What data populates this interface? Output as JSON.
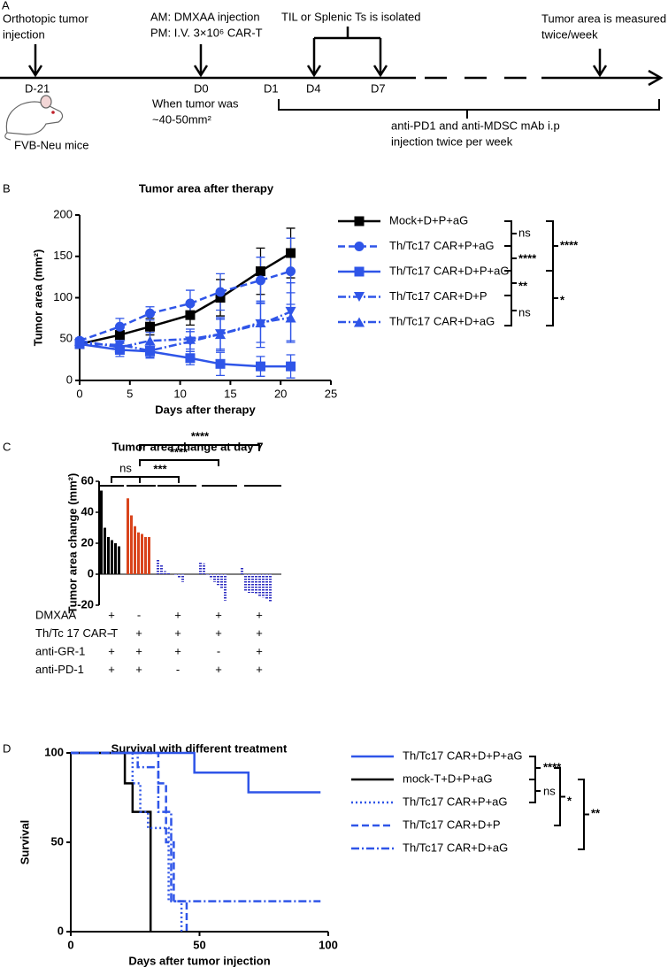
{
  "panel_a": {
    "label": "A",
    "texts": [
      "Orthotopic tumor",
      "injection",
      "AM: DMXAA injection",
      "PM: I.V. 3×10⁶ CAR-T",
      "TIL or Splenic Ts is isolated",
      "Tumor area is measured",
      "twice/week",
      "D-21",
      "D0",
      "D1",
      "D4",
      "D7",
      "When tumor was",
      "~40-50mm²",
      "FVB-Neu mice",
      "anti-PD1 and anti-MDSC mAb i.p",
      "injection twice per week"
    ]
  },
  "chart_data": [
    {
      "panel": "B",
      "type": "line",
      "title": "Tumor area after therapy",
      "x_label": "Days after therapy",
      "y_label": "Tumor area (mm²)",
      "x": [
        0,
        4,
        7,
        11,
        14,
        18,
        21
      ],
      "series": [
        {
          "name": "Mock+D+P+aG",
          "color": "#000000",
          "marker": "square",
          "line": "solid",
          "values": [
            44,
            55,
            65,
            79,
            100,
            132,
            154
          ],
          "errors": [
            3,
            10,
            10,
            12,
            22,
            28,
            30
          ]
        },
        {
          "name": "Th/Tc17 CAR+P+aG",
          "color": "#2f55e8",
          "marker": "circle",
          "line": "dashed",
          "values": [
            48,
            65,
            81,
            93,
            107,
            121,
            132
          ],
          "errors": [
            3,
            10,
            8,
            16,
            22,
            28,
            40
          ]
        },
        {
          "name": "Th/Tc17 CAR+D+P+aG",
          "color": "#2f55e8",
          "marker": "square",
          "line": "solid",
          "values": [
            44,
            37,
            35,
            27,
            20,
            17,
            17
          ],
          "errors": [
            3,
            8,
            8,
            8,
            14,
            12,
            14
          ]
        },
        {
          "name": "Th/Tc17 CAR+D+P",
          "color": "#2f55e8",
          "marker": "triangle-down",
          "line": "dashdot",
          "values": [
            44,
            43,
            36,
            47,
            56,
            68,
            83
          ],
          "errors": [
            3,
            10,
            8,
            12,
            20,
            28,
            35
          ]
        },
        {
          "name": "Th/Tc17 CAR+D+aG",
          "color": "#2f55e8",
          "marker": "triangle-up",
          "line": "dashdot",
          "values": [
            48,
            40,
            48,
            50,
            56,
            70,
            76
          ],
          "errors": [
            3,
            8,
            10,
            12,
            18,
            24,
            30
          ]
        }
      ],
      "xlim": [
        0,
        25
      ],
      "xticks": [
        0,
        5,
        10,
        15,
        20,
        25
      ],
      "ylim": [
        0,
        200
      ],
      "yticks": [
        0,
        50,
        100,
        150,
        200
      ],
      "annotations": [
        "ns",
        "****",
        "****",
        "**",
        "ns",
        "*"
      ]
    },
    {
      "panel": "C",
      "type": "bar",
      "title": "Tumor area change at day 7",
      "y_label": "Tumor area change (mm²)",
      "groups": [
        {
          "color": "#000000",
          "pattern": "solid",
          "values": [
            54,
            30,
            24,
            22,
            20,
            18
          ]
        },
        {
          "color": "#d9441c",
          "pattern": "solid",
          "values": [
            49,
            38,
            31,
            27,
            26,
            24,
            24
          ]
        },
        {
          "color": "#2b2bc0",
          "pattern": "hatch",
          "values": [
            10,
            6,
            2,
            1,
            0,
            -1,
            -2,
            -5
          ]
        },
        {
          "color": "#2b2bc0",
          "pattern": "hatch",
          "values": [
            8,
            7,
            -1,
            -3,
            -5,
            -7,
            -9,
            -17
          ]
        },
        {
          "color": "#2b2bc0",
          "pattern": "hatch",
          "values": [
            4,
            -11,
            -12,
            -12,
            -13,
            -14,
            -15,
            -16,
            -18
          ]
        }
      ],
      "ylim": [
        -20,
        60
      ],
      "yticks": [
        -20,
        0,
        20,
        40,
        60
      ],
      "treatments": [
        {
          "label": "DMXAA",
          "marks": [
            "+",
            "-",
            "+",
            "+",
            "+"
          ]
        },
        {
          "label": "Th/Tc 17 CAR-T",
          "marks": [
            "-",
            "+",
            "+",
            "+",
            "+"
          ]
        },
        {
          "label": "anti-GR-1",
          "marks": [
            "+",
            "+",
            "+",
            "-",
            "+"
          ]
        },
        {
          "label": "anti-PD-1",
          "marks": [
            "+",
            "+",
            "-",
            "+",
            "+"
          ]
        }
      ],
      "annotations": [
        "ns",
        "***",
        "****",
        "****"
      ]
    },
    {
      "panel": "D",
      "type": "step",
      "title": "Survival with different treatment",
      "x_label": "Days after tumor injection",
      "y_label": "Survival",
      "series": [
        {
          "name": "Th/Tc17 CAR+D+P+aG",
          "color": "#2f55e8",
          "line": "solid",
          "x": [
            0,
            48,
            69,
            97
          ],
          "values": [
            100,
            89,
            78,
            78
          ]
        },
        {
          "name": "mock-T+D+P+aG",
          "color": "#000000",
          "line": "solid",
          "x": [
            0,
            21,
            24,
            31
          ],
          "values": [
            100,
            83,
            67,
            0
          ]
        },
        {
          "name": "Th/Tc17 CAR+P+aG",
          "color": "#2f55e8",
          "line": "dotted",
          "x": [
            0,
            24,
            27,
            30,
            38,
            43
          ],
          "values": [
            100,
            83,
            67,
            58,
            17,
            0
          ]
        },
        {
          "name": "Th/Tc17 CAR+D+P",
          "color": "#2f55e8",
          "line": "dashed",
          "x": [
            0,
            34,
            37,
            40,
            45
          ],
          "values": [
            100,
            83,
            50,
            17,
            0
          ]
        },
        {
          "name": "Th/Tc17 CAR+D+aG",
          "color": "#2f55e8",
          "line": "dashdot",
          "x": [
            0,
            26,
            34,
            39,
            97
          ],
          "values": [
            100,
            92,
            67,
            17,
            17
          ]
        }
      ],
      "xlim": [
        0,
        100
      ],
      "xticks": [
        0,
        50,
        100
      ],
      "ylim": [
        0,
        100
      ],
      "yticks": [
        0,
        50,
        100
      ],
      "annotations": [
        "****",
        "ns",
        "*",
        "**"
      ]
    }
  ]
}
